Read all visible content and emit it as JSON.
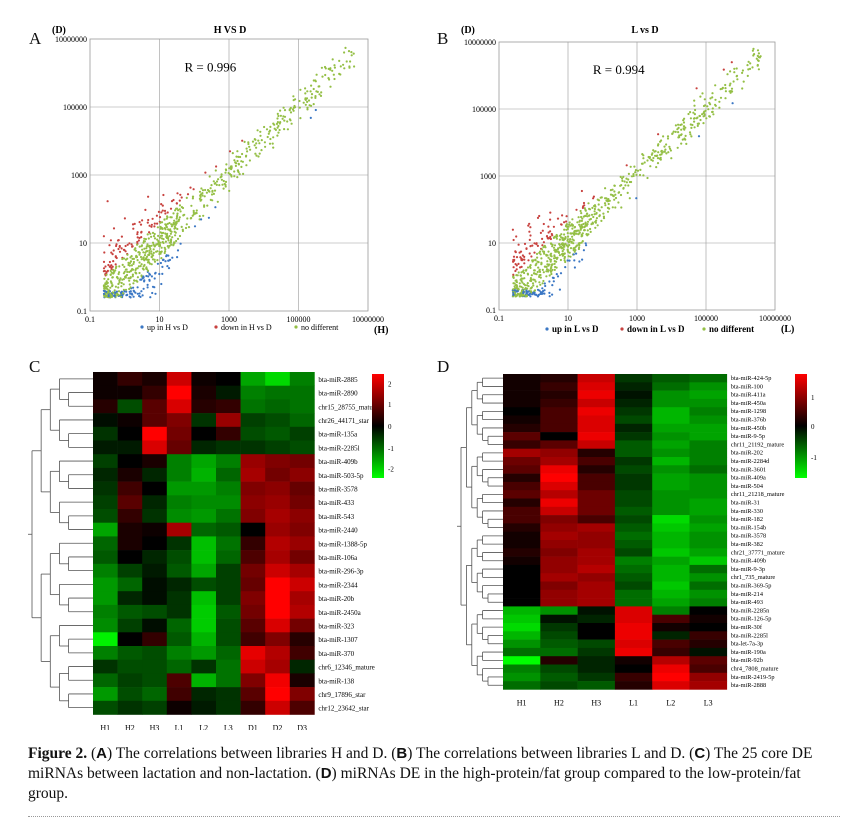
{
  "panels": {
    "A": {
      "letter": "A",
      "title": "H VS D",
      "y_axis_var": "(D)",
      "x_axis_var": "(H)",
      "r_text": "R = 0.996",
      "y_ticks": [
        "10000000",
        "100000",
        "1000",
        "10",
        "0.1"
      ],
      "x_ticks": [
        "0.1",
        "10",
        "1000",
        "100000",
        "10000000"
      ],
      "legend": [
        {
          "label": "up in H vs D",
          "color": "#3b77c4"
        },
        {
          "label": "down in H vs D",
          "color": "#c8423f"
        },
        {
          "label": "no different",
          "color": "#94bf45"
        }
      ]
    },
    "B": {
      "letter": "B",
      "title": "L vs D",
      "y_axis_var": "(D)",
      "x_axis_var": "(L)",
      "r_text": "R = 0.994",
      "y_ticks": [
        "10000000",
        "100000",
        "1000",
        "10",
        "0.1"
      ],
      "x_ticks": [
        "0.1",
        "10",
        "1000",
        "100000",
        "10000000"
      ],
      "legend": [
        {
          "label": "up in L vs D",
          "color": "#3b77c4"
        },
        {
          "label": "down in L vs D",
          "color": "#c8423f"
        },
        {
          "label": "no different",
          "color": "#94bf45"
        }
      ]
    },
    "C": {
      "letter": "C",
      "columns": [
        "H1",
        "H2",
        "H3",
        "L1",
        "L2",
        "L3",
        "D1",
        "D2",
        "D3"
      ],
      "scale_ticks": [
        "2",
        "1",
        "0",
        "-1",
        "-2"
      ],
      "rows": [
        {
          "label": "bta-miR-2885",
          "values": [
            0.1,
            0.4,
            0.2,
            1.6,
            0.1,
            0.0,
            -1.3,
            -1.7,
            -1.0
          ]
        },
        {
          "label": "bta-miR-2890",
          "values": [
            0.1,
            0.1,
            0.4,
            2.0,
            0.2,
            -0.2,
            -1.0,
            -0.9,
            -0.9
          ]
        },
        {
          "label": "chr15_28755_mature",
          "values": [
            0.3,
            -0.6,
            0.7,
            1.7,
            0.3,
            0.4,
            -0.9,
            -0.8,
            -0.9
          ]
        },
        {
          "label": "chr26_44171_star",
          "values": [
            -0.1,
            0.1,
            0.7,
            1.0,
            -0.4,
            1.2,
            -0.5,
            -0.6,
            -0.8
          ]
        },
        {
          "label": "bta-miR-135a",
          "values": [
            -0.4,
            0.0,
            2.0,
            0.9,
            0.0,
            0.4,
            -0.6,
            -0.7,
            -0.5
          ]
        },
        {
          "label": "bta-miR-2285l",
          "values": [
            -0.2,
            -0.2,
            1.7,
            0.8,
            -0.3,
            -0.4,
            -0.4,
            -0.5,
            -0.6
          ]
        },
        {
          "label": "bta-miR-409b",
          "values": [
            -0.5,
            0.0,
            0.2,
            -1.0,
            -1.3,
            -1.0,
            1.2,
            1.0,
            0.9
          ]
        },
        {
          "label": "bta-miR-503-5p",
          "values": [
            -0.3,
            0.2,
            -0.3,
            -1.0,
            -1.4,
            -0.8,
            1.3,
            0.9,
            1.1
          ]
        },
        {
          "label": "bta-miR-3578",
          "values": [
            -0.4,
            0.5,
            0.0,
            -1.2,
            -1.2,
            -1.0,
            1.0,
            1.1,
            0.8
          ]
        },
        {
          "label": "bta-miR-433",
          "values": [
            -0.5,
            0.7,
            -0.3,
            -1.0,
            -1.1,
            -1.1,
            1.1,
            1.2,
            0.9
          ]
        },
        {
          "label": "bta-miR-543",
          "values": [
            -0.6,
            0.4,
            -0.4,
            -1.1,
            -1.2,
            -0.9,
            1.0,
            1.3,
            1.1
          ]
        },
        {
          "label": "bta-miR-2440",
          "values": [
            -1.3,
            0.2,
            0.1,
            1.3,
            -0.8,
            -0.7,
            0.0,
            1.2,
            1.0
          ]
        },
        {
          "label": "bta-miR-1388-5p",
          "values": [
            -0.8,
            0.2,
            0.0,
            -0.4,
            -1.5,
            -0.9,
            0.4,
            1.4,
            1.2
          ]
        },
        {
          "label": "bta-miR-106a",
          "values": [
            -0.7,
            0.0,
            -0.3,
            -0.6,
            -1.5,
            -0.8,
            0.6,
            1.3,
            0.9
          ]
        },
        {
          "label": "bta-miR-296-3p",
          "values": [
            -1.0,
            -0.5,
            -0.2,
            -0.7,
            -1.3,
            -0.5,
            0.9,
            1.6,
            1.3
          ]
        },
        {
          "label": "bta-miR-2344",
          "values": [
            -1.2,
            -0.8,
            -0.1,
            -0.3,
            -0.6,
            -0.5,
            0.8,
            2.0,
            1.6
          ]
        },
        {
          "label": "bta-miR-20b",
          "values": [
            -1.2,
            -0.3,
            -0.1,
            -0.4,
            -1.5,
            -0.5,
            1.0,
            2.0,
            1.3
          ]
        },
        {
          "label": "bta-miR-2450a",
          "values": [
            -1.0,
            -0.7,
            -0.6,
            -0.4,
            -1.6,
            -0.7,
            0.9,
            2.0,
            1.4
          ]
        },
        {
          "label": "bta-miR-323",
          "values": [
            -1.1,
            -0.5,
            -0.1,
            -0.8,
            -1.6,
            -0.6,
            0.7,
            1.7,
            0.9
          ]
        },
        {
          "label": "bta-miR-1307",
          "values": [
            -1.9,
            0.0,
            0.4,
            -0.7,
            -1.4,
            -0.6,
            0.5,
            1.0,
            0.3
          ]
        },
        {
          "label": "bta-miR-370",
          "values": [
            -1.0,
            -0.7,
            -0.6,
            -1.0,
            -1.2,
            -0.8,
            1.8,
            1.4,
            0.5
          ]
        },
        {
          "label": "chr6_12346_mature",
          "values": [
            -0.4,
            -0.6,
            -0.6,
            -0.8,
            -0.4,
            -0.9,
            1.6,
            1.3,
            -0.3
          ]
        },
        {
          "label": "bta-miR-138",
          "values": [
            -0.8,
            -0.5,
            -0.6,
            0.6,
            -1.4,
            -0.9,
            1.0,
            1.9,
            0.2
          ]
        },
        {
          "label": "chr9_17896_star",
          "values": [
            -1.2,
            -0.6,
            -0.8,
            0.5,
            -0.3,
            -0.4,
            0.7,
            2.0,
            1.0
          ]
        },
        {
          "label": "chr12_23642_star",
          "values": [
            -0.6,
            -0.4,
            -0.5,
            0.1,
            -0.2,
            -0.4,
            0.4,
            1.6,
            0.6
          ]
        }
      ]
    },
    "D": {
      "letter": "D",
      "columns": [
        "H1",
        "H2",
        "H3",
        "L1",
        "L2",
        "L3"
      ],
      "scale_ticks": [
        "1",
        "0",
        "-1"
      ],
      "rows": [
        {
          "label": "bta-miR-424-5p",
          "values": [
            0.1,
            0.2,
            1.1,
            -0.3,
            -0.5,
            -0.6
          ]
        },
        {
          "label": "bta-miR-100",
          "values": [
            0.1,
            0.3,
            1.2,
            -0.2,
            -0.6,
            -0.8
          ]
        },
        {
          "label": "bta-miR-411a",
          "values": [
            0.1,
            0.2,
            1.3,
            -0.1,
            -0.8,
            -0.9
          ]
        },
        {
          "label": "bta-miR-450a",
          "values": [
            0.1,
            0.3,
            1.1,
            -0.2,
            -0.8,
            -0.8
          ]
        },
        {
          "label": "bta-miR-1298",
          "values": [
            0.0,
            0.4,
            1.3,
            -0.3,
            -1.0,
            -0.7
          ]
        },
        {
          "label": "bta-miR-376b",
          "values": [
            0.1,
            0.4,
            1.2,
            -0.4,
            -1.0,
            -0.8
          ]
        },
        {
          "label": "bta-miR-450b",
          "values": [
            0.2,
            0.4,
            1.2,
            -0.2,
            -0.9,
            -0.9
          ]
        },
        {
          "label": "bta-miR-9-5p",
          "values": [
            0.5,
            0.0,
            1.3,
            -0.3,
            -0.8,
            -0.9
          ]
        },
        {
          "label": "chr11_21192_mature",
          "values": [
            0.3,
            0.5,
            1.1,
            -0.5,
            -0.9,
            -0.7
          ]
        },
        {
          "label": "bta-miR-202",
          "values": [
            0.9,
            0.8,
            0.2,
            -0.5,
            -0.8,
            -0.7
          ]
        },
        {
          "label": "bta-miR-2284d",
          "values": [
            0.6,
            0.9,
            0.4,
            -0.3,
            -1.0,
            -0.7
          ]
        },
        {
          "label": "bta-miR-3601",
          "values": [
            0.5,
            1.3,
            0.2,
            -0.4,
            -0.8,
            -0.6
          ]
        },
        {
          "label": "bta-miR-409a",
          "values": [
            0.2,
            1.4,
            0.4,
            -0.3,
            -0.9,
            -0.8
          ]
        },
        {
          "label": "bta-miR-504",
          "values": [
            0.4,
            1.2,
            0.4,
            -0.3,
            -0.9,
            -0.8
          ]
        },
        {
          "label": "chr11_21218_mature",
          "values": [
            0.5,
            1.0,
            0.6,
            -0.4,
            -0.8,
            -0.8
          ]
        },
        {
          "label": "bta-miR-31",
          "values": [
            0.2,
            1.3,
            0.6,
            -0.4,
            -0.8,
            -0.9
          ]
        },
        {
          "label": "bta-miR-330",
          "values": [
            0.4,
            1.1,
            0.6,
            -0.5,
            -0.8,
            -0.9
          ]
        },
        {
          "label": "bta-miR-182",
          "values": [
            0.4,
            0.7,
            0.4,
            -0.4,
            -1.2,
            -0.8
          ]
        },
        {
          "label": "bta-miR-154b",
          "values": [
            0.2,
            0.8,
            0.9,
            -0.5,
            -1.1,
            -0.9
          ]
        },
        {
          "label": "bta-miR-3578",
          "values": [
            0.1,
            0.9,
            0.8,
            -0.6,
            -1.0,
            -0.8
          ]
        },
        {
          "label": "bta-miR-382",
          "values": [
            0.1,
            0.8,
            0.8,
            -0.5,
            -1.0,
            -0.8
          ]
        },
        {
          "label": "chr21_37771_mature",
          "values": [
            0.2,
            0.7,
            0.9,
            -0.4,
            -1.1,
            -0.9
          ]
        },
        {
          "label": "bta-miR-409b",
          "values": [
            0.1,
            0.8,
            0.9,
            -0.7,
            -0.9,
            -1.1
          ]
        },
        {
          "label": "bta-miR-9-3p",
          "values": [
            0.0,
            0.8,
            1.0,
            -0.6,
            -1.0,
            -0.6
          ]
        },
        {
          "label": "chr1_735_mature",
          "values": [
            0.0,
            0.9,
            0.8,
            -0.5,
            -1.0,
            -0.8
          ]
        },
        {
          "label": "bta-miR-369-5p",
          "values": [
            0.0,
            0.7,
            0.9,
            -0.4,
            -1.1,
            -0.6
          ]
        },
        {
          "label": "bta-miR-214",
          "values": [
            0.0,
            0.8,
            0.9,
            -0.6,
            -1.0,
            -0.8
          ]
        },
        {
          "label": "bta-miR-493",
          "values": [
            0.0,
            0.8,
            0.9,
            -0.6,
            -0.9,
            -0.7
          ]
        },
        {
          "label": "bta-miR-2285n",
          "values": [
            -1.0,
            -0.8,
            -0.1,
            1.2,
            -0.7,
            0.0
          ]
        },
        {
          "label": "bta-miR-126-5p",
          "values": [
            -1.1,
            -0.1,
            -0.2,
            1.2,
            0.4,
            0.1
          ]
        },
        {
          "label": "bta-miR-30f",
          "values": [
            -1.2,
            -0.3,
            0.0,
            1.3,
            0.1,
            0.0
          ]
        },
        {
          "label": "bta-miR-2285l",
          "values": [
            -1.0,
            -0.4,
            0.0,
            1.3,
            -0.2,
            0.3
          ]
        },
        {
          "label": "bta-let-7a-3p",
          "values": [
            -0.8,
            -0.5,
            -0.4,
            1.2,
            0.4,
            0.2
          ]
        },
        {
          "label": "bta-miR-190a",
          "values": [
            -0.6,
            -0.6,
            -0.3,
            1.3,
            0.3,
            -0.1
          ]
        },
        {
          "label": "bta-miR-92b",
          "values": [
            -1.7,
            0.2,
            -0.2,
            0.1,
            1.0,
            0.5
          ]
        },
        {
          "label": "chr4_7808_mature",
          "values": [
            -0.7,
            -0.4,
            -0.2,
            0.0,
            1.3,
            0.4
          ]
        },
        {
          "label": "bta-miR-2419-5p",
          "values": [
            -0.8,
            -0.5,
            -0.3,
            0.3,
            1.4,
            0.8
          ]
        },
        {
          "label": "bta-miR-2888",
          "values": [
            -0.6,
            -0.4,
            -0.5,
            0.2,
            1.2,
            0.9
          ]
        }
      ]
    }
  },
  "caption": {
    "label": "Figure 2.",
    "parts": [
      {
        "b": "A",
        "t": ") The correlations between libraries H and D. ("
      },
      {
        "b": "B",
        "t": ") The correlations between libraries L and D. ("
      },
      {
        "b": "C",
        "t": ") The 25 core DE miRNAs between lactation and non-lactation. ("
      },
      {
        "b": "D",
        "t": ") miRNAs DE in the high-protein/fat group compared to the low-protein/fat group."
      }
    ]
  },
  "colors": {
    "up": "#3b77c4",
    "down": "#c8423f",
    "nodiff": "#94bf45",
    "heat_high": "#ff0000",
    "heat_mid": "#000000",
    "heat_low": "#00ff00"
  }
}
